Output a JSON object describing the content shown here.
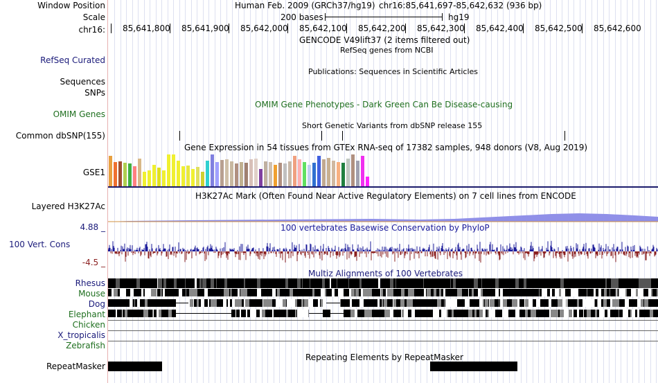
{
  "header": {
    "window_position_label": "Window Position",
    "scale_label": "Scale",
    "chrom_label": "chr16:",
    "assembly_text": "Human Feb. 2009 (GRCh37/hg19)",
    "position_text": "chr16:85,641,697-85,642,632 (936 bp)",
    "scale_text": "200 bases",
    "db_text": "hg19",
    "ticks": [
      "85,641,800",
      "85,641,900",
      "85,642,000",
      "85,642,100",
      "85,642,200",
      "85,642,300",
      "85,642,400",
      "85,642,500",
      "85,642,600"
    ]
  },
  "tracks": {
    "gencode": {
      "title": "GENCODE V49lift37 (2 items filtered out)"
    },
    "refseq": {
      "label": "RefSeq Curated",
      "title": "RefSeq genes from NCBI",
      "color": "#1a1a7a"
    },
    "publications": {
      "title": "Publications: Sequences in Scientific Articles"
    },
    "sequences": {
      "label": "Sequences"
    },
    "snps": {
      "label": "SNPs"
    },
    "omim": {
      "label": "OMIM Genes",
      "title": "OMIM Gene Phenotypes - Dark Green Can Be Disease-causing",
      "color": "#1f6f1f"
    },
    "dbsnp_title": {
      "title": "Short Genetic Variants from dbSNP release 155"
    },
    "dbsnp": {
      "label": "Common dbSNP(155)"
    },
    "gtex": {
      "label": "GSE1",
      "title": "Gene Expression in 54 tissues from GTEx RNA-seq of 17382 samples, 948 donors (V8, Aug 2019)"
    },
    "h3k27ac": {
      "label": "Layered H3K27Ac",
      "title": "H3K27Ac Mark (Often Found Near Active Regulatory Elements) on 7 cell lines from ENCODE"
    },
    "phylop": {
      "label": "100 Vert. Cons",
      "title": "100 vertebrates Basewise Conservation by PhyloP",
      "max_label": "4.88 _",
      "min_label": "-4.5 _",
      "color": "#1a1a9a",
      "neg_color": "#8b2020"
    },
    "multiz": {
      "title": "Multiz Alignments of 100 Vertebrates",
      "species": [
        {
          "name": "Rhesus",
          "color": "#1a1a7a"
        },
        {
          "name": "Mouse",
          "color": "#1f6f1f"
        },
        {
          "name": "Dog",
          "color": "#1a1a7a"
        },
        {
          "name": "Elephant",
          "color": "#1f6f1f"
        },
        {
          "name": "Chicken",
          "color": "#1f6f1f"
        },
        {
          "name": "X_tropicalis",
          "color": "#1a1a7a"
        },
        {
          "name": "Zebrafish",
          "color": "#1f6f1f"
        }
      ]
    },
    "repeatmasker": {
      "label": "RepeatMasker",
      "title": "Repeating Elements by RepeatMasker"
    }
  },
  "gtex_values": [
    0.95,
    0.75,
    0.78,
    0.74,
    0.72,
    0.62,
    0.88,
    0.45,
    0.5,
    0.68,
    0.58,
    0.5,
    1.0,
    1.0,
    0.8,
    0.62,
    0.65,
    0.55,
    0.6,
    0.45,
    0.8,
    1.0,
    0.75,
    0.82,
    0.85,
    0.78,
    0.72,
    0.75,
    0.74,
    0.85,
    0.88,
    0.55,
    0.78,
    0.75,
    0.68,
    0.73,
    0.72,
    0.78,
    0.95,
    0.85,
    0.76,
    0.68,
    0.73,
    0.95,
    0.85,
    0.9,
    0.8,
    0.76,
    0.74,
    0.88,
    1.0,
    0.8,
    0.95,
    0.3
  ],
  "gtex_colors": [
    "#e8a040",
    "#f07030",
    "#a05030",
    "#b0d050",
    "#40b040",
    "#ff8080",
    "#d8b888",
    "#f0f030",
    "#f0f030",
    "#f0f030",
    "#e0e020",
    "#f0f030",
    "#f0f030",
    "#f0f030",
    "#f0f030",
    "#f0f030",
    "#e8e840",
    "#f0f030",
    "#e0e060",
    "#d0d030",
    "#30d0d0",
    "#8080e0",
    "#a0a0ff",
    "#b8a090",
    "#d0c0a8",
    "#c8b8a0",
    "#b09080",
    "#c0b090",
    "#a08070",
    "#d8c0b8",
    "#e0d0c8",
    "#8040a0",
    "#c0b0a0",
    "#d0c0b0",
    "#f0a030",
    "#b09080",
    "#c0c0c0",
    "#c8b8a8",
    "#f0a080",
    "#ffb0b0",
    "#60e060",
    "#c0d0f0",
    "#3070d0",
    "#4060e0",
    "#c0a890",
    "#c8b090",
    "#d0b8a0",
    "#f8b080",
    "#208040",
    "#c0c8c0",
    "#b09080",
    "#a0a0b0",
    "#f030f0",
    "#ff20ff"
  ]
}
